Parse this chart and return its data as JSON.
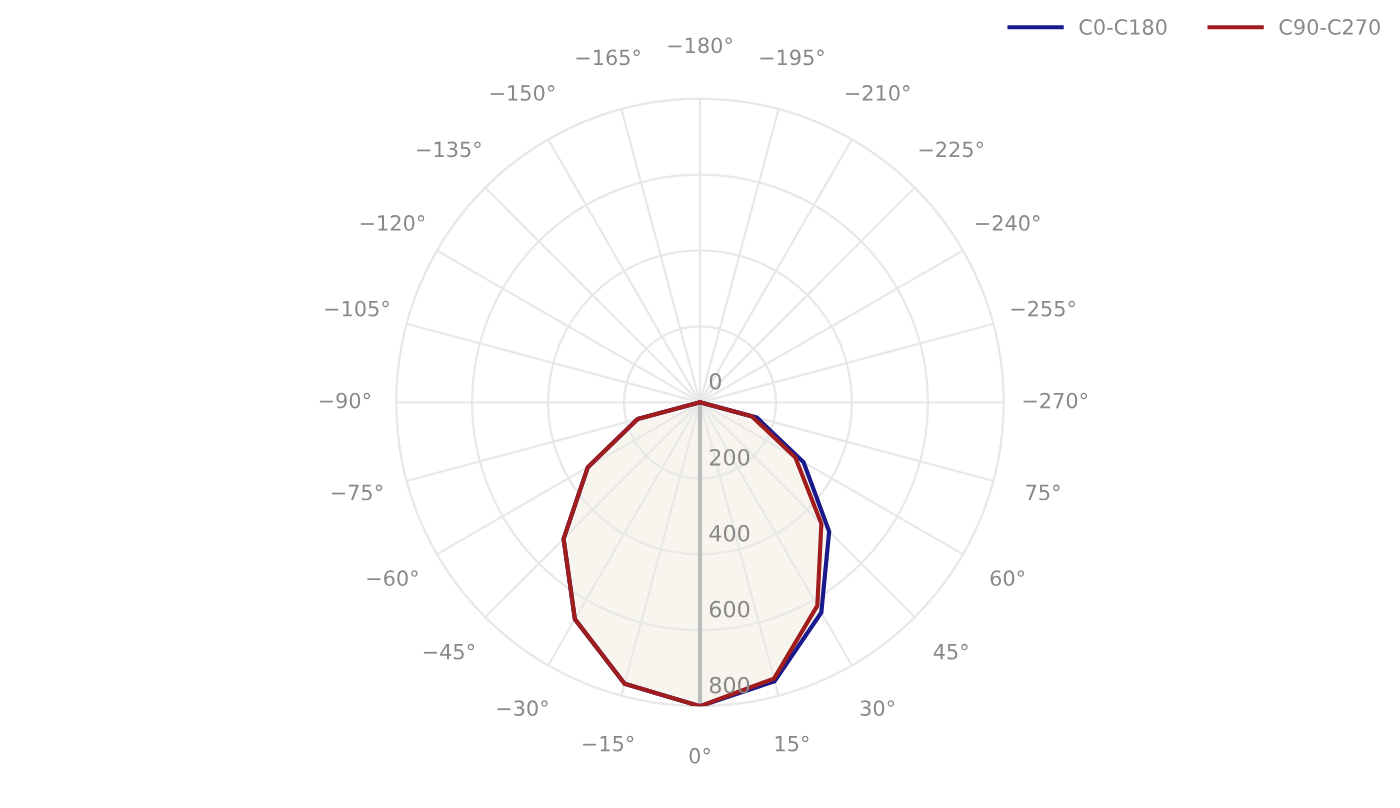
{
  "chart_data": {
    "type": "radar",
    "categories": [
      "−180°",
      "−195°",
      "−210°",
      "−225°",
      "−240°",
      "−255°",
      "−270°",
      "75°",
      "60°",
      "45°",
      "30°",
      "15°",
      "0°",
      "−15°",
      "−30°",
      "−45°",
      "−60°",
      "−75°",
      "−90°",
      "−105°",
      "−120°",
      "−135°",
      "−150°",
      "−165°"
    ],
    "series": [
      {
        "name": "C0-C180",
        "color": "#1a1a8c",
        "values": [
          0,
          0,
          0,
          0,
          0,
          0,
          0,
          155,
          315,
          481,
          639,
          760,
          800,
          767,
          659,
          508,
          341,
          170,
          0,
          0,
          0,
          0,
          0,
          0
        ]
      },
      {
        "name": "C90-C270",
        "color": "#a11d1d",
        "values": [
          0,
          0,
          0,
          0,
          0,
          0,
          0,
          141,
          290,
          452,
          618,
          753,
          800,
          767,
          659,
          508,
          341,
          170,
          0,
          0,
          0,
          0,
          0,
          0
        ]
      }
    ],
    "ylim": [
      0,
      800
    ],
    "yticks": [
      0,
      200,
      400,
      600,
      800
    ],
    "grid": true,
    "legend": "top right",
    "marker": "none",
    "line_style": "solid"
  }
}
